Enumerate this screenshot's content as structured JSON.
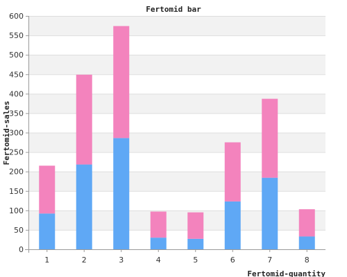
{
  "chart_data": {
    "type": "bar",
    "stacked": true,
    "title": "Fertomid bar",
    "xlabel": "Fertomid-quantity",
    "ylabel": "Fertomid-sales",
    "categories": [
      "1",
      "2",
      "3",
      "4",
      "5",
      "6",
      "7",
      "8"
    ],
    "ylim": [
      0,
      600
    ],
    "yticks": [
      0,
      50,
      100,
      150,
      200,
      250,
      300,
      350,
      400,
      450,
      500,
      550,
      600
    ],
    "grid": true,
    "legend": "none",
    "series": [
      {
        "color": "#5fa8f5",
        "values": [
          92,
          218,
          286,
          30,
          27,
          123,
          184,
          33
        ]
      },
      {
        "color": "#f383bd",
        "values": [
          123,
          231,
          288,
          67,
          68,
          152,
          203,
          70
        ]
      }
    ],
    "band_colors": [
      "#f2f2f2",
      "#ffffff"
    ]
  }
}
